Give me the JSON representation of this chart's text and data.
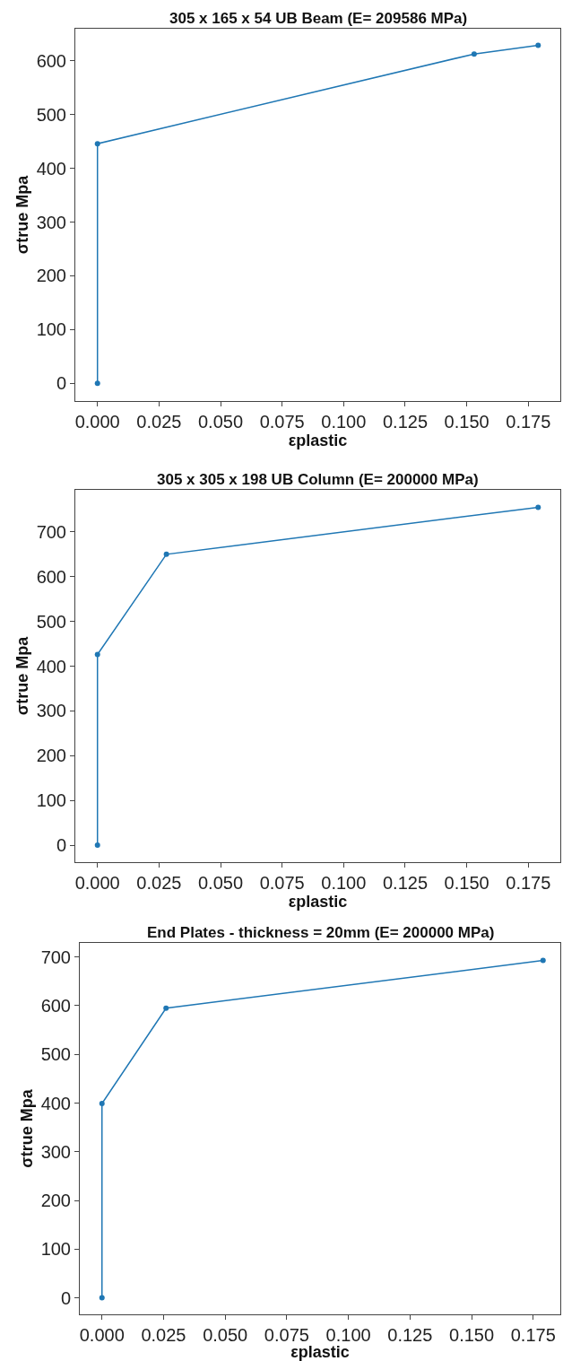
{
  "chart_data": [
    {
      "type": "line",
      "title": "305 x 165 x 54 UB Beam (E= 209586 MPa)",
      "xlabel": "εplastic",
      "ylabel": "σtrue Mpa",
      "marker": "circle",
      "line_style": "solid",
      "grid": false,
      "series": [
        {
          "color": "#1f77b4",
          "x": [
            0,
            0,
            0.153,
            0.179
          ],
          "values": [
            0,
            446,
            613,
            629
          ]
        }
      ],
      "xlim": [
        -0.009,
        0.188
      ],
      "ylim": [
        -33,
        660
      ],
      "xticks": [
        {
          "value": 0,
          "label": "0.000"
        },
        {
          "value": 0.025,
          "label": "0.025"
        },
        {
          "value": 0.05,
          "label": "0.050"
        },
        {
          "value": 0.075,
          "label": "0.075"
        },
        {
          "value": 0.1,
          "label": "0.100"
        },
        {
          "value": 0.125,
          "label": "0.125"
        },
        {
          "value": 0.15,
          "label": "0.150"
        },
        {
          "value": 0.175,
          "label": "0.175"
        }
      ],
      "yticks": [
        0,
        100,
        200,
        300,
        400,
        500,
        600
      ]
    },
    {
      "type": "line",
      "title": "305 x 305 x 198 UB Column (E= 200000 MPa)",
      "xlabel": "εplastic",
      "ylabel": "σtrue Mpa",
      "marker": "circle",
      "line_style": "solid",
      "grid": false,
      "series": [
        {
          "color": "#1f77b4",
          "x": [
            0,
            0,
            0.028,
            0.179
          ],
          "values": [
            0,
            426,
            650,
            755
          ]
        }
      ],
      "xlim": [
        -0.009,
        0.188
      ],
      "ylim": [
        -38,
        794
      ],
      "xticks": [
        {
          "value": 0,
          "label": "0.000"
        },
        {
          "value": 0.025,
          "label": "0.025"
        },
        {
          "value": 0.05,
          "label": "0.050"
        },
        {
          "value": 0.075,
          "label": "0.075"
        },
        {
          "value": 0.1,
          "label": "0.100"
        },
        {
          "value": 0.125,
          "label": "0.125"
        },
        {
          "value": 0.15,
          "label": "0.150"
        },
        {
          "value": 0.175,
          "label": "0.175"
        }
      ],
      "yticks": [
        0,
        100,
        200,
        300,
        400,
        500,
        600,
        700
      ]
    },
    {
      "type": "line",
      "title": "End Plates - thickness = 20mm (E= 200000 MPa)",
      "xlabel": "εplastic",
      "ylabel": "σtrue Mpa",
      "marker": "circle",
      "line_style": "solid",
      "grid": false,
      "series": [
        {
          "color": "#1f77b4",
          "x": [
            0,
            0,
            0.026,
            0.179
          ],
          "values": [
            0,
            399,
            595,
            693
          ]
        }
      ],
      "xlim": [
        -0.009,
        0.186
      ],
      "ylim": [
        -34,
        729
      ],
      "xticks": [
        {
          "value": 0,
          "label": "0.000"
        },
        {
          "value": 0.025,
          "label": "0.025"
        },
        {
          "value": 0.05,
          "label": "0.050"
        },
        {
          "value": 0.075,
          "label": "0.075"
        },
        {
          "value": 0.1,
          "label": "0.100"
        },
        {
          "value": 0.125,
          "label": "0.125"
        },
        {
          "value": 0.15,
          "label": "0.150"
        },
        {
          "value": 0.175,
          "label": "0.175"
        }
      ],
      "yticks": [
        0,
        100,
        200,
        300,
        400,
        500,
        600,
        700
      ]
    }
  ]
}
